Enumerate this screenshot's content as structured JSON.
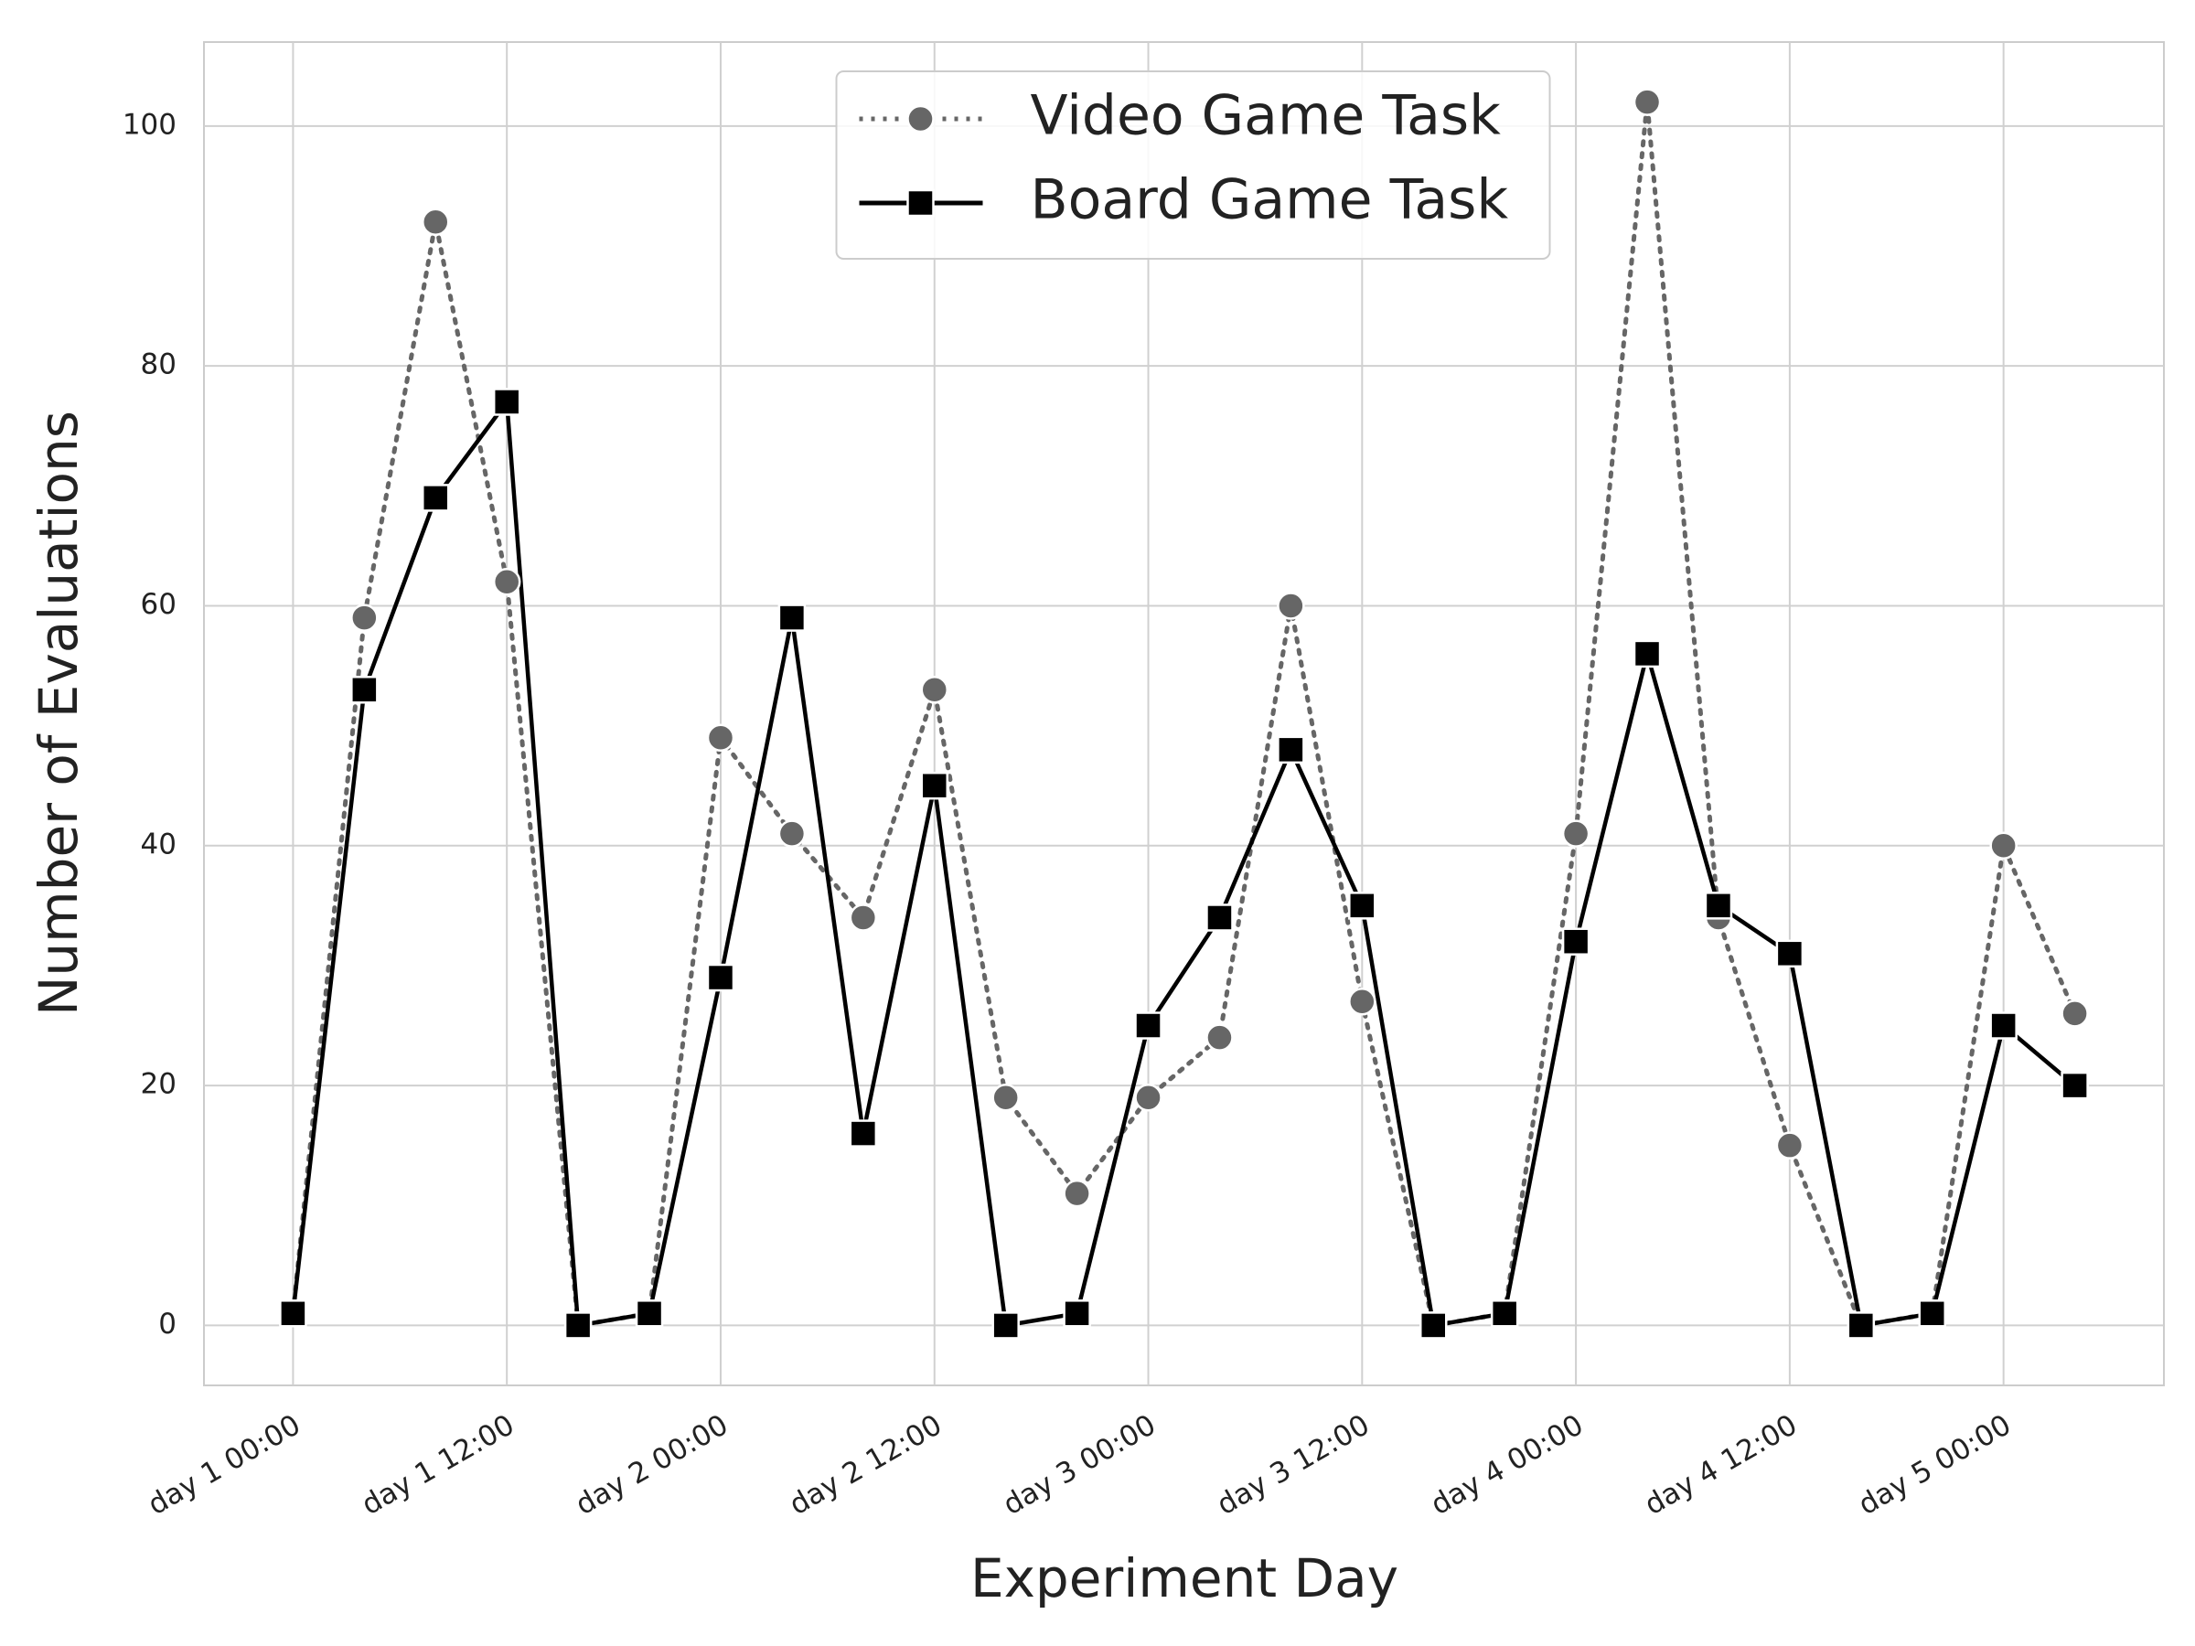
{
  "chart_data": {
    "type": "line",
    "xlabel": "Experiment Day",
    "ylabel": "Number of Evaluations",
    "x": [
      0,
      4,
      8,
      12,
      16,
      20,
      24,
      28,
      32,
      36,
      40,
      44,
      48,
      52,
      56,
      60,
      64,
      68,
      72,
      76,
      80,
      84,
      88,
      92,
      96,
      100
    ],
    "series": [
      {
        "name": "Video Game Task",
        "color": "#666666",
        "dash": "dotted",
        "marker": "circle",
        "values": [
          1,
          59,
          92,
          62,
          0,
          1,
          49,
          41,
          34,
          53,
          19,
          11,
          19,
          24,
          60,
          27,
          0,
          1,
          41,
          102,
          34,
          15,
          0,
          1,
          40,
          26
        ]
      },
      {
        "name": "Board Game Task",
        "color": "#000000",
        "dash": "solid",
        "marker": "square",
        "values": [
          1,
          53,
          69,
          77,
          0,
          1,
          29,
          59,
          16,
          45,
          0,
          1,
          25,
          34,
          48,
          35,
          0,
          1,
          32,
          56,
          35,
          31,
          0,
          1,
          25,
          20
        ]
      }
    ],
    "xlim": [
      -5,
      105
    ],
    "xticks": [
      {
        "value": 0,
        "label": "day 1 00:00"
      },
      {
        "value": 12,
        "label": "day 1 12:00"
      },
      {
        "value": 24,
        "label": "day 2 00:00"
      },
      {
        "value": 36,
        "label": "day 2 12:00"
      },
      {
        "value": 48,
        "label": "day 3 00:00"
      },
      {
        "value": 60,
        "label": "day 3 12:00"
      },
      {
        "value": 72,
        "label": "day 4 00:00"
      },
      {
        "value": 84,
        "label": "day 4 12:00"
      },
      {
        "value": 96,
        "label": "day 5 00:00"
      }
    ],
    "ylim": [
      -5,
      107
    ],
    "yticks": [
      0,
      20,
      40,
      60,
      80,
      100
    ],
    "grid": true,
    "legend": "upper center"
  }
}
